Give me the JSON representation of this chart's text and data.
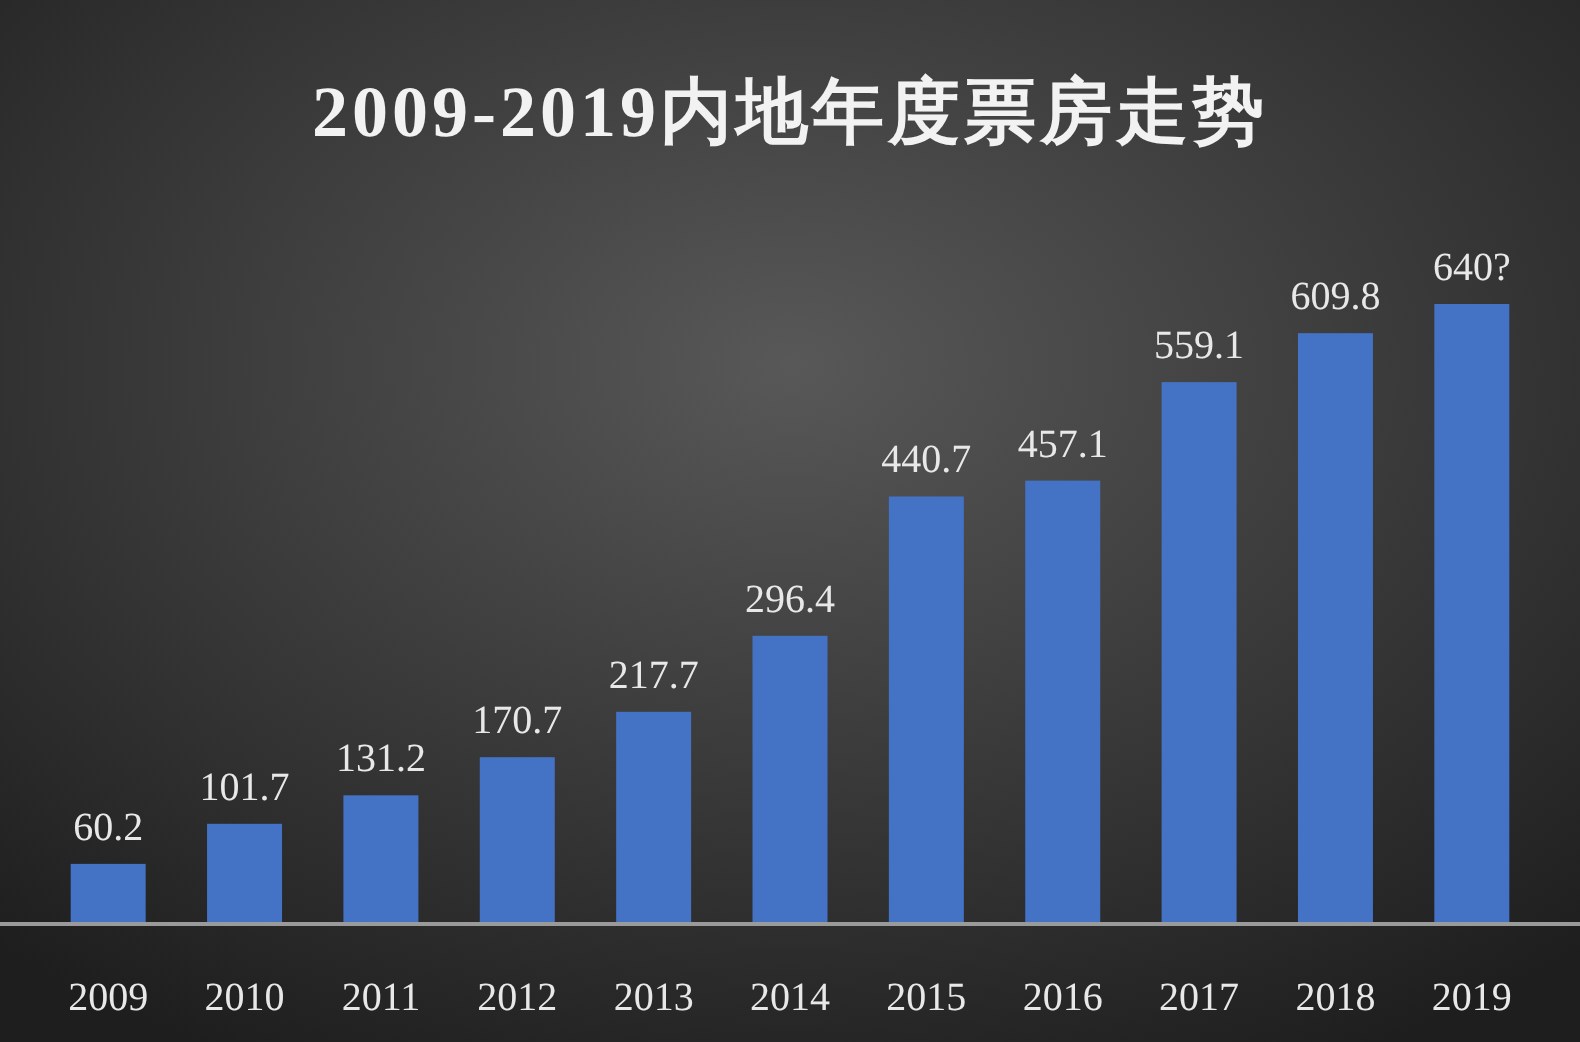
{
  "chart_data": {
    "type": "bar",
    "title": "2009-2019内地年度票房走势",
    "categories": [
      "2009",
      "2010",
      "2011",
      "2012",
      "2013",
      "2014",
      "2015",
      "2016",
      "2017",
      "2018",
      "2019"
    ],
    "values": [
      60.2,
      101.7,
      131.2,
      170.7,
      217.7,
      296.4,
      440.7,
      457.1,
      559.1,
      609.8,
      640
    ],
    "value_labels": [
      "60.2",
      "101.7",
      "131.2",
      "170.7",
      "217.7",
      "296.4",
      "440.7",
      "457.1",
      "559.1",
      "609.8",
      "640?"
    ],
    "color": "#4472c4"
  }
}
